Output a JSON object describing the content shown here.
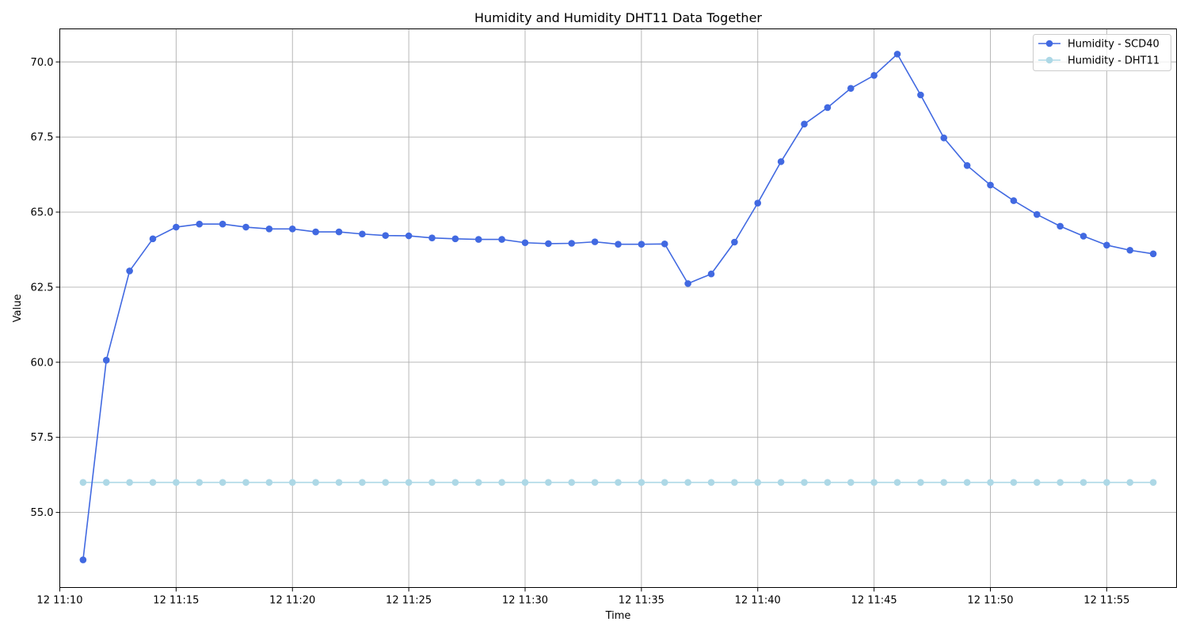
{
  "chart_data": {
    "type": "line",
    "title": "Humidity and Humidity DHT11 Data Together",
    "xlabel": "Time",
    "ylabel": "Value",
    "x_start": "12 11:11",
    "x_step_minutes": 1,
    "xlim": [
      "12 11:10",
      "12 11:58"
    ],
    "ylim": [
      52.5,
      71.1
    ],
    "x_ticks": [
      "12 11:10",
      "12 11:15",
      "12 11:20",
      "12 11:25",
      "12 11:30",
      "12 11:35",
      "12 11:40",
      "12 11:45",
      "12 11:50",
      "12 11:55"
    ],
    "y_ticks": [
      "55.0",
      "57.5",
      "60.0",
      "62.5",
      "65.0",
      "67.5",
      "70.0"
    ],
    "grid": true,
    "legend_position": "top-right",
    "series": [
      {
        "name": "Humidity - SCD40",
        "color": "#4169e1",
        "marker": "circle",
        "values": [
          53.42,
          60.07,
          63.04,
          64.11,
          64.5,
          64.6,
          64.6,
          64.5,
          64.44,
          64.44,
          64.34,
          64.34,
          64.27,
          64.22,
          64.21,
          64.14,
          64.11,
          64.09,
          64.09,
          63.98,
          63.95,
          63.96,
          64.01,
          63.93,
          63.93,
          63.94,
          62.62,
          62.94,
          64.0,
          65.3,
          66.68,
          67.93,
          68.48,
          69.12,
          69.55,
          70.26,
          68.9,
          67.47,
          66.55,
          65.9,
          65.38,
          64.92,
          64.53,
          64.2,
          63.9,
          63.73,
          63.61
        ]
      },
      {
        "name": "Humidity - DHT11",
        "color": "#add8e6",
        "marker": "circle",
        "values": [
          56.0,
          56.0,
          56.0,
          56.0,
          56.0,
          56.0,
          56.0,
          56.0,
          56.0,
          56.0,
          56.0,
          56.0,
          56.0,
          56.0,
          56.0,
          56.0,
          56.0,
          56.0,
          56.0,
          56.0,
          56.0,
          56.0,
          56.0,
          56.0,
          56.0,
          56.0,
          56.0,
          56.0,
          56.0,
          56.0,
          56.0,
          56.0,
          56.0,
          56.0,
          56.0,
          56.0,
          56.0,
          56.0,
          56.0,
          56.0,
          56.0,
          56.0,
          56.0,
          56.0,
          56.0,
          56.0,
          56.0
        ]
      }
    ]
  }
}
